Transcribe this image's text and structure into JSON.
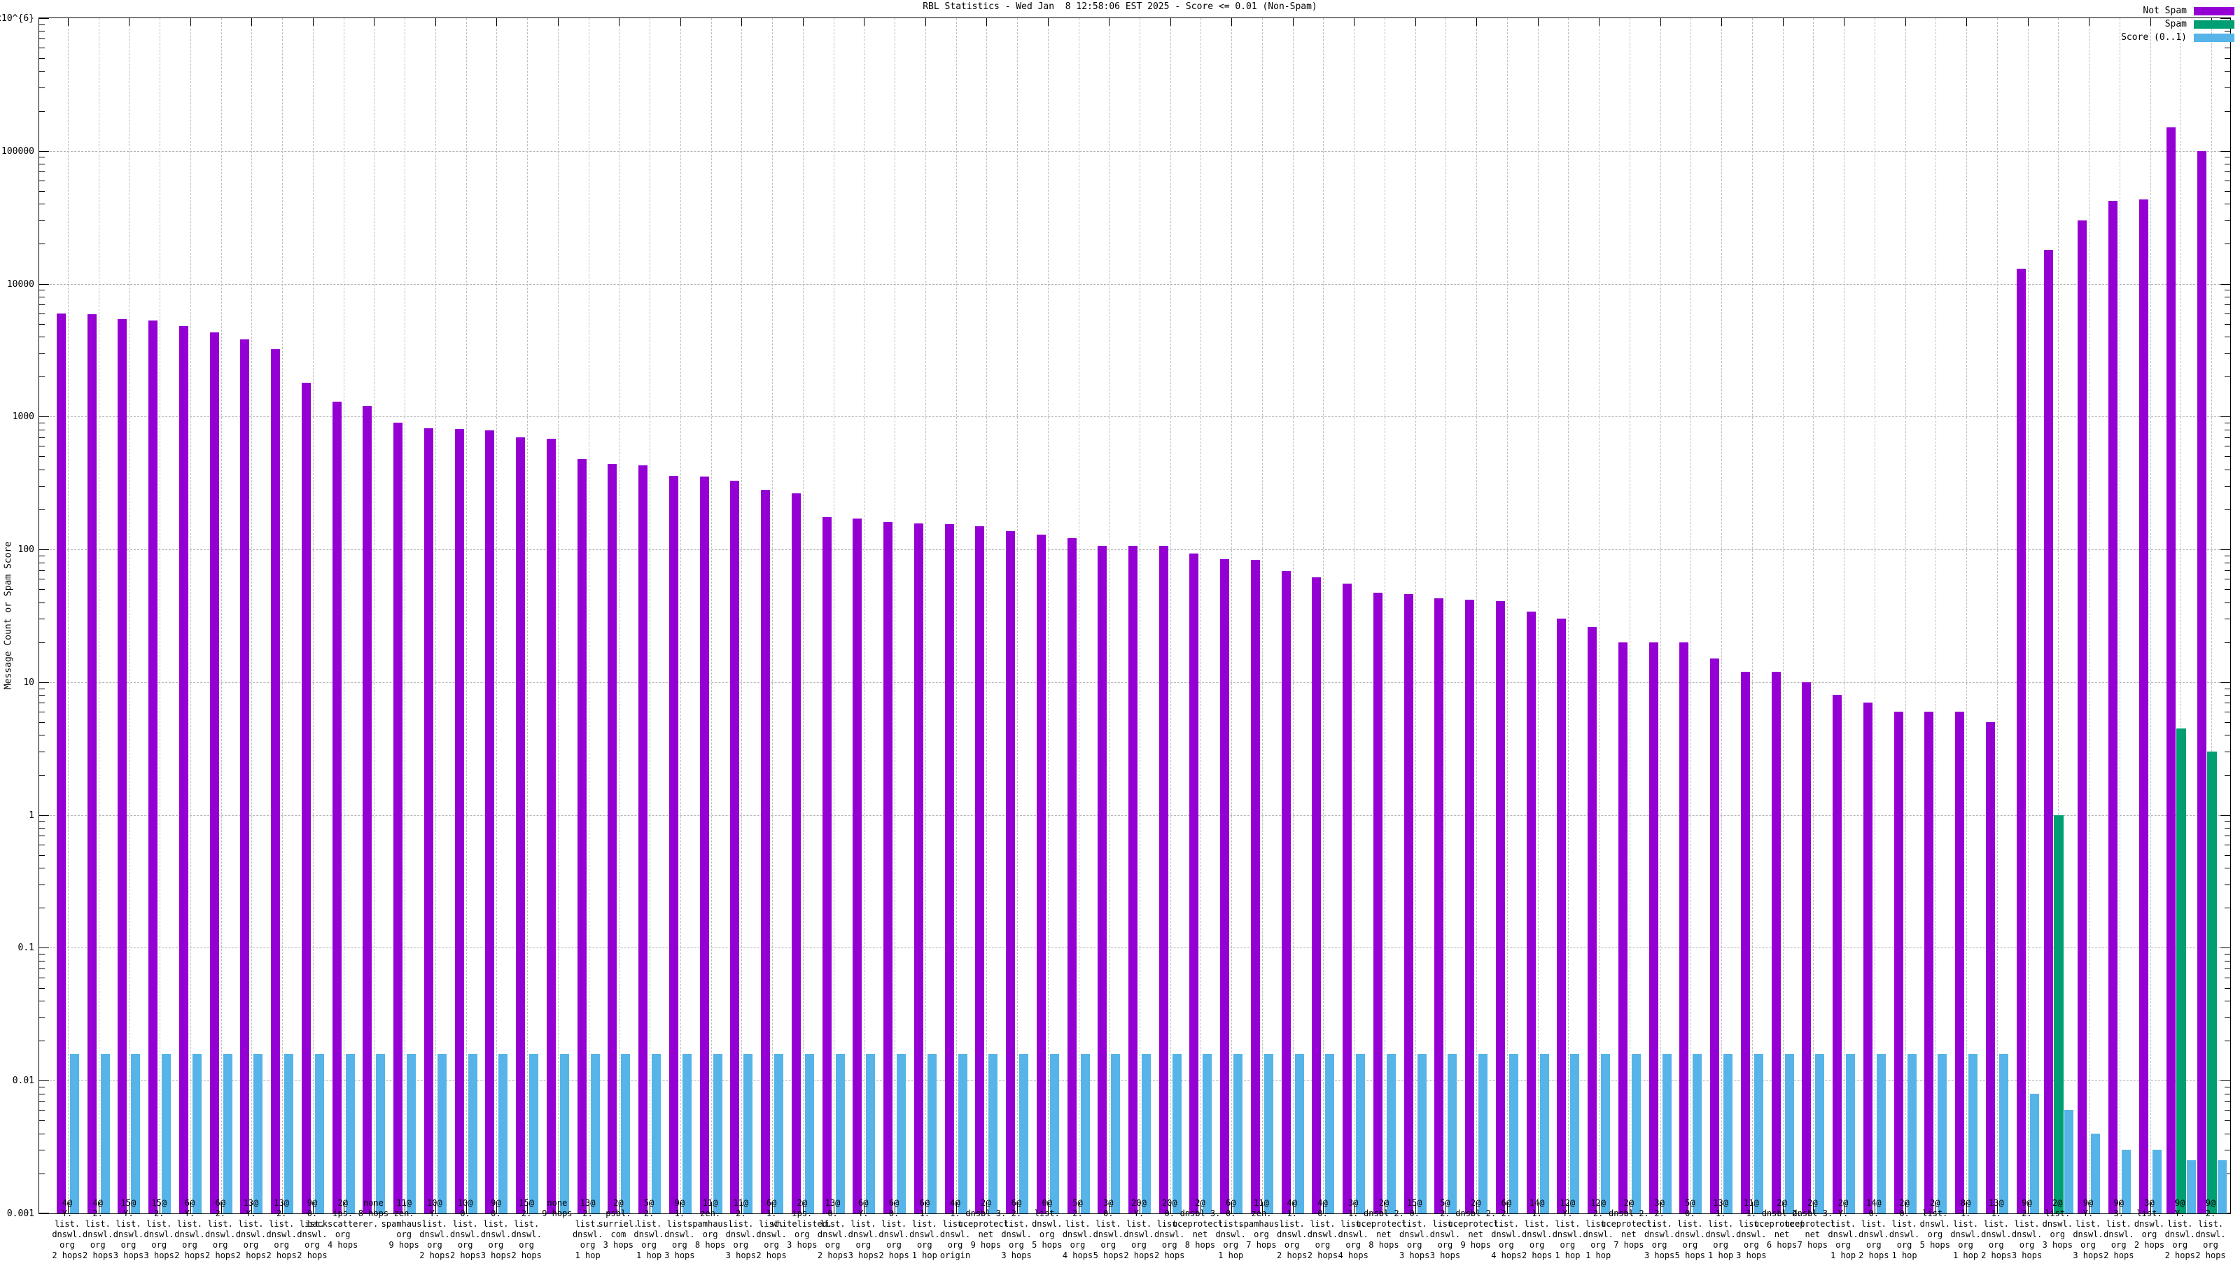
{
  "title": "RBL Statistics - Wed Jan  8 12:58:06 EST 2025 - Score <= 0.01 (Non-Spam)",
  "ylabel": "Message Count or Spam Score",
  "legend": [
    {
      "label": "Not Spam",
      "color": "#9400d3"
    },
    {
      "label": "Spam",
      "color": "#009e73"
    },
    {
      "label": "Score (0..1)",
      "color": "#56b4e9"
    }
  ],
  "chart_data": {
    "type": "bar",
    "yscale": "log",
    "ylim": [
      0.001,
      1000000
    ],
    "ytick_labels": [
      "1x10^{6}",
      "100000",
      "10000",
      "1000",
      "100",
      "10",
      "1",
      "0.1",
      "0.01",
      "0.001"
    ],
    "grid": true,
    "legend_position": "top-right",
    "categories": [
      [
        "4@",
        "Y.",
        "list.",
        "dnswl.",
        "org",
        "2 hops"
      ],
      [
        "4@",
        "2.",
        "list.",
        "dnswl.",
        "org",
        "2 hops"
      ],
      [
        "15@",
        "Y.",
        "list.",
        "dnswl.",
        "org",
        "3 hops"
      ],
      [
        "15@",
        "2.",
        "list.",
        "dnswl.",
        "org",
        "3 hops"
      ],
      [
        "6@",
        "Y.",
        "list.",
        "dnswl.",
        "org",
        "2 hops"
      ],
      [
        "6@",
        "2.",
        "list.",
        "dnswl.",
        "org",
        "2 hops"
      ],
      [
        "13@",
        "Y.",
        "list.",
        "dnswl.",
        "org",
        "2 hops"
      ],
      [
        "13@",
        "2.",
        "list.",
        "dnswl.",
        "org",
        "2 hops"
      ],
      [
        "9@",
        "0.",
        "list.",
        "dnswl.",
        "org",
        "2 hops"
      ],
      [
        "2@",
        "ips.",
        "backscatterer.",
        "org",
        "4 hops"
      ],
      [
        "none",
        "8 hops"
      ],
      [
        "11@",
        "zen.",
        "spamhaus.",
        "org",
        "9 hops"
      ],
      [
        "10@",
        "Y.",
        "list.",
        "dnswl.",
        "org",
        "2 hops"
      ],
      [
        "10@",
        "0.",
        "list.",
        "dnswl.",
        "org",
        "2 hops"
      ],
      [
        "9@",
        "0.",
        "list.",
        "dnswl.",
        "org",
        "3 hops"
      ],
      [
        "15@",
        "2.",
        "list.",
        "dnswl.",
        "org",
        "2 hops"
      ],
      [
        "none",
        "9 hops"
      ],
      [
        "13@",
        "2.",
        "list.",
        "dnswl.",
        "org",
        "1 hop"
      ],
      [
        "2@",
        "psbl.",
        "surriel.",
        "com",
        "3 hops"
      ],
      [
        "5@",
        "2.",
        "list.",
        "dnswl.",
        "org",
        "1 hop"
      ],
      [
        "9@",
        "1.",
        "list.",
        "dnswl.",
        "org",
        "3 hops"
      ],
      [
        "11@",
        "zen.",
        "spamhaus.",
        "org",
        "8 hops"
      ],
      [
        "11@",
        "2.",
        "list.",
        "dnswl.",
        "org",
        "3 hops"
      ],
      [
        "6@",
        "1.",
        "list.",
        "dnswl.",
        "org",
        "2 hops"
      ],
      [
        "2@",
        "ips.",
        "whitelisted.",
        "org",
        "3 hops"
      ],
      [
        "13@",
        "0.",
        "list.",
        "dnswl.",
        "org",
        "2 hops"
      ],
      [
        "6@",
        "Y.",
        "list.",
        "dnswl.",
        "org",
        "3 hops"
      ],
      [
        "6@",
        "0.",
        "list.",
        "dnswl.",
        "org",
        "2 hops"
      ],
      [
        "6@",
        "1.",
        "list.",
        "dnswl.",
        "org",
        "1 hop"
      ],
      [
        "4@",
        "1.",
        "list.",
        "dnswl.",
        "org",
        "origin"
      ],
      [
        "2@",
        "dnsbl-3.",
        "uceprotect.",
        "net",
        "9 hops"
      ],
      [
        "6@",
        "2.",
        "list.",
        "dnswl.",
        "org",
        "3 hops"
      ],
      [
        "0@",
        "list.",
        "dnswl.",
        "org",
        "5 hops"
      ],
      [
        "5@",
        "2.",
        "list.",
        "dnswl.",
        "org",
        "4 hops"
      ],
      [
        "3@",
        "0.",
        "list.",
        "dnswl.",
        "org",
        "5 hops"
      ],
      [
        "20@",
        "Y.",
        "list.",
        "dnswl.",
        "org",
        "2 hops"
      ],
      [
        "20@",
        "0.",
        "list.",
        "dnswl.",
        "org",
        "2 hops"
      ],
      [
        "2@",
        "dnsbl-3.",
        "uceprotect.",
        "net",
        "8 hops"
      ],
      [
        "6@",
        "0.",
        "list.",
        "dnswl.",
        "org",
        "1 hop"
      ],
      [
        "11@",
        "zen.",
        "spamhaus.",
        "org",
        "7 hops"
      ],
      [
        "4@",
        "1.",
        "list.",
        "dnswl.",
        "org",
        "2 hops"
      ],
      [
        "4@",
        "0.",
        "list.",
        "dnswl.",
        "org",
        "2 hops"
      ],
      [
        "3@",
        "1.",
        "list.",
        "dnswl.",
        "org",
        "4 hops"
      ],
      [
        "2@",
        "dnsbl-2.",
        "uceprotect.",
        "net",
        "8 hops"
      ],
      [
        "15@",
        "0.",
        "list.",
        "dnswl.",
        "org",
        "3 hops"
      ],
      [
        "5@",
        "2.",
        "list.",
        "dnswl.",
        "org",
        "3 hops"
      ],
      [
        "2@",
        "dnsbl-2.",
        "uceprotect.",
        "net",
        "9 hops"
      ],
      [
        "6@",
        "2.",
        "list.",
        "dnswl.",
        "org",
        "4 hops"
      ],
      [
        "14@",
        "1.",
        "list.",
        "dnswl.",
        "org",
        "2 hops"
      ],
      [
        "12@",
        "Y.",
        "list.",
        "dnswl.",
        "org",
        "1 hop"
      ],
      [
        "12@",
        "2.",
        "list.",
        "dnswl.",
        "org",
        "1 hop"
      ],
      [
        "2@",
        "dnsbl-2.",
        "uceprotect.",
        "net",
        "7 hops"
      ],
      [
        "3@",
        "2.",
        "list.",
        "dnswl.",
        "org",
        "3 hops"
      ],
      [
        "5@",
        "0.",
        "list.",
        "dnswl.",
        "org",
        "5 hops"
      ],
      [
        "13@",
        "1.",
        "list.",
        "dnswl.",
        "org",
        "1 hop"
      ],
      [
        "11@",
        "1.",
        "list.",
        "dnswl.",
        "org",
        "3 hops"
      ],
      [
        "2@",
        "dnsbl-2.",
        "uceprotect.",
        "net",
        "6 hops"
      ],
      [
        "2@",
        "dnsbl-3.",
        "uceprotect.",
        "net",
        "7 hops"
      ],
      [
        "2@",
        "Y.",
        "list.",
        "dnswl.",
        "org",
        "1 hop"
      ],
      [
        "14@",
        "0.",
        "list.",
        "dnswl.",
        "org",
        "2 hops"
      ],
      [
        "2@",
        "0.",
        "list.",
        "dnswl.",
        "org",
        "1 hop"
      ],
      [
        "2@",
        "list.",
        "dnswl.",
        "org",
        "5 hops"
      ],
      [
        "8@",
        "1.",
        "list.",
        "dnswl.",
        "org",
        "1 hop"
      ],
      [
        "13@",
        "1.",
        "list.",
        "dnswl.",
        "org",
        "2 hops"
      ],
      [
        "9@",
        "2.",
        "list.",
        "dnswl.",
        "org",
        "3 hops"
      ],
      [
        "2@",
        "list.",
        "dnswl.",
        "org",
        "3 hops"
      ],
      [
        "9@",
        "Y.",
        "list.",
        "dnswl.",
        "org",
        "3 hops"
      ],
      [
        "9@",
        "3.",
        "list.",
        "dnswl.",
        "org",
        "2 hops"
      ],
      [
        "3@",
        "list.",
        "dnswl.",
        "org",
        "2 hops"
      ],
      [
        "9@",
        "Y.",
        "list.",
        "dnswl.",
        "org",
        "2 hops"
      ],
      [
        "9@",
        "2.",
        "list.",
        "dnswl.",
        "org",
        "2 hops"
      ]
    ],
    "series": [
      {
        "name": "Not Spam",
        "color": "#9400d3",
        "values": [
          6000,
          5900,
          5400,
          5300,
          4800,
          4300,
          3800,
          3200,
          1800,
          1300,
          1200,
          900,
          820,
          810,
          790,
          700,
          680,
          480,
          440,
          430,
          360,
          355,
          330,
          280,
          265,
          175,
          170,
          160,
          156,
          155,
          150,
          138,
          129,
          122,
          107,
          106,
          106,
          93,
          84,
          83,
          69,
          62,
          55,
          47,
          46,
          43,
          42,
          41,
          34,
          30,
          26,
          20,
          20,
          20,
          15,
          12,
          12,
          10,
          8,
          7,
          6,
          6,
          6,
          5,
          13000,
          18000,
          30000,
          42000,
          43000,
          150000,
          100000
        ]
      },
      {
        "name": "Spam",
        "color": "#009e73",
        "values": [
          0,
          0,
          0,
          0,
          0,
          0,
          0,
          0,
          0,
          0,
          0,
          0,
          0,
          0,
          0,
          0,
          0,
          0,
          0,
          0,
          0,
          0,
          0,
          0,
          0,
          0,
          0,
          0,
          0,
          0,
          0,
          0,
          0,
          0,
          0,
          0,
          0,
          0,
          0,
          0,
          0,
          0,
          0,
          0,
          0,
          0,
          0,
          0,
          0,
          0,
          0,
          0,
          0,
          0,
          0,
          0,
          0,
          0,
          0,
          0,
          0,
          0,
          0,
          0,
          0,
          1.0,
          0,
          0,
          0,
          4.5,
          3.0
        ]
      },
      {
        "name": "Score (0..1)",
        "color": "#56b4e9",
        "values": [
          0.016,
          0.016,
          0.016,
          0.016,
          0.016,
          0.016,
          0.016,
          0.016,
          0.016,
          0.016,
          0.016,
          0.016,
          0.016,
          0.016,
          0.016,
          0.016,
          0.016,
          0.016,
          0.016,
          0.016,
          0.016,
          0.016,
          0.016,
          0.016,
          0.016,
          0.016,
          0.016,
          0.016,
          0.016,
          0.016,
          0.016,
          0.016,
          0.016,
          0.016,
          0.016,
          0.016,
          0.016,
          0.016,
          0.016,
          0.016,
          0.016,
          0.016,
          0.016,
          0.016,
          0.016,
          0.016,
          0.016,
          0.016,
          0.016,
          0.016,
          0.016,
          0.016,
          0.016,
          0.016,
          0.016,
          0.016,
          0.016,
          0.016,
          0.016,
          0.016,
          0.016,
          0.016,
          0.016,
          0.016,
          0.008,
          0.006,
          0.004,
          0.003,
          0.003,
          0.0025,
          0.0025
        ]
      }
    ]
  }
}
